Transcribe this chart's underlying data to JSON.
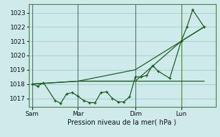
{
  "background_color": "#ceeaea",
  "grid_color": "#aacece",
  "line_color": "#1a5c1a",
  "xlabel": "Pression niveau de la mer( hPa )",
  "ylim": [
    1016.4,
    1023.6
  ],
  "yticks": [
    1017,
    1018,
    1019,
    1020,
    1021,
    1022,
    1023
  ],
  "xtick_labels": [
    "Sam",
    "Mar",
    "Dim",
    "Lun"
  ],
  "xtick_positions": [
    0,
    4,
    9,
    13
  ],
  "xlim": [
    -0.3,
    16.0
  ],
  "series_main": {
    "x": [
      0,
      0.5,
      1.0,
      2.0,
      2.5,
      3.0,
      3.5,
      4.0,
      4.5,
      5.0,
      5.5,
      6.0,
      6.5,
      7.0,
      7.5,
      8.0,
      8.5,
      9.0,
      9.5,
      10.0,
      10.5,
      11.0,
      12.0,
      13.0,
      13.5,
      14.0,
      15.0
    ],
    "y": [
      1018.0,
      1017.85,
      1018.1,
      1016.85,
      1016.65,
      1017.3,
      1017.4,
      1017.15,
      1016.85,
      1016.7,
      1016.7,
      1017.4,
      1017.45,
      1017.0,
      1016.75,
      1016.75,
      1017.1,
      1018.5,
      1018.5,
      1018.6,
      1019.3,
      1018.9,
      1018.4,
      1021.0,
      1022.0,
      1023.2,
      1022.0
    ]
  },
  "series_trend1": {
    "x": [
      0,
      4,
      9,
      13,
      15
    ],
    "y": [
      1018.0,
      1018.2,
      1018.2,
      1021.0,
      1022.0
    ]
  },
  "series_flat": {
    "x": [
      0,
      4,
      9,
      12,
      15
    ],
    "y": [
      1018.0,
      1018.2,
      1018.2,
      1018.2,
      1018.2
    ]
  },
  "series_trend2": {
    "x": [
      4,
      9,
      13,
      15
    ],
    "y": [
      1018.2,
      1019.0,
      1021.0,
      1022.0
    ]
  }
}
